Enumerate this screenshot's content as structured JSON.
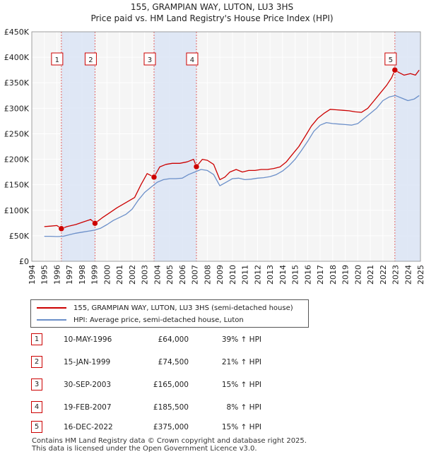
{
  "chart_data": {
    "type": "line",
    "title": "155, GRAMPIAN WAY, LUTON, LU3 3HS",
    "subtitle": "Price paid vs. HM Land Registry's House Price Index (HPI)",
    "xlabel": "",
    "ylabel": "",
    "xlim": [
      1994,
      2025
    ],
    "ylim": [
      0,
      450000
    ],
    "y_ticks": [
      {
        "value": 0,
        "label": "£0"
      },
      {
        "value": 50000,
        "label": "£50K"
      },
      {
        "value": 100000,
        "label": "£100K"
      },
      {
        "value": 150000,
        "label": "£150K"
      },
      {
        "value": 200000,
        "label": "£200K"
      },
      {
        "value": 250000,
        "label": "£250K"
      },
      {
        "value": 300000,
        "label": "£300K"
      },
      {
        "value": 350000,
        "label": "£350K"
      },
      {
        "value": 400000,
        "label": "£400K"
      },
      {
        "value": 450000,
        "label": "£450K"
      }
    ],
    "x_ticks": [
      "1994",
      "1995",
      "1996",
      "1997",
      "1998",
      "1999",
      "2000",
      "2001",
      "2002",
      "2003",
      "2004",
      "2005",
      "2006",
      "2007",
      "2008",
      "2009",
      "2010",
      "2011",
      "2012",
      "2013",
      "2014",
      "2015",
      "2016",
      "2017",
      "2018",
      "2019",
      "2020",
      "2021",
      "2022",
      "2023",
      "2024",
      "2025"
    ],
    "grid": true,
    "series": [
      {
        "name": "155, GRAMPIAN WAY, LUTON, LU3 3HS (semi-detached house)",
        "color": "#cc0000",
        "x": [
          1995.0,
          1995.5,
          1996.0,
          1996.36,
          1996.8,
          1997.5,
          1998.2,
          1998.7,
          1999.04,
          1999.6,
          2000.2,
          2000.8,
          2001.5,
          2002.2,
          2002.7,
          2003.2,
          2003.75,
          2004.2,
          2004.7,
          2005.2,
          2005.8,
          2006.4,
          2006.9,
          2007.13,
          2007.6,
          2008.0,
          2008.5,
          2009.0,
          2009.4,
          2009.8,
          2010.3,
          2010.8,
          2011.3,
          2011.8,
          2012.3,
          2012.8,
          2013.3,
          2013.8,
          2014.3,
          2014.8,
          2015.3,
          2015.8,
          2016.3,
          2016.8,
          2017.3,
          2017.8,
          2018.3,
          2018.8,
          2019.3,
          2019.8,
          2020.3,
          2020.8,
          2021.3,
          2021.8,
          2022.3,
          2022.7,
          2022.96,
          2023.3,
          2023.7,
          2024.2,
          2024.6,
          2024.9
        ],
        "values": [
          68000,
          69000,
          70000,
          64000,
          68000,
          72000,
          78000,
          82000,
          74500,
          85000,
          95000,
          105000,
          115000,
          125000,
          150000,
          172000,
          165000,
          185000,
          190000,
          192000,
          192000,
          195000,
          200000,
          185500,
          200000,
          198000,
          190000,
          160000,
          165000,
          175000,
          180000,
          175000,
          178000,
          178000,
          180000,
          180000,
          182000,
          185000,
          195000,
          210000,
          225000,
          245000,
          265000,
          280000,
          290000,
          298000,
          297000,
          296000,
          295000,
          293000,
          292000,
          300000,
          315000,
          330000,
          345000,
          360000,
          375000,
          370000,
          365000,
          368000,
          365000,
          375000
        ]
      },
      {
        "name": "HPI: Average price, semi-detached house, Luton",
        "color": "#6b8fc9",
        "x": [
          1995.0,
          1995.5,
          1996.0,
          1996.5,
          1997.0,
          1997.5,
          1998.0,
          1998.5,
          1999.0,
          1999.5,
          2000.0,
          2000.5,
          2001.0,
          2001.5,
          2002.0,
          2002.5,
          2003.0,
          2003.5,
          2004.0,
          2004.5,
          2005.0,
          2005.5,
          2006.0,
          2006.5,
          2007.0,
          2007.5,
          2008.0,
          2008.5,
          2009.0,
          2009.5,
          2010.0,
          2010.5,
          2011.0,
          2011.5,
          2012.0,
          2012.5,
          2013.0,
          2013.5,
          2014.0,
          2014.5,
          2015.0,
          2015.5,
          2016.0,
          2016.5,
          2017.0,
          2017.5,
          2018.0,
          2018.5,
          2019.0,
          2019.5,
          2020.0,
          2020.5,
          2021.0,
          2021.5,
          2022.0,
          2022.5,
          2023.0,
          2023.5,
          2024.0,
          2024.5,
          2024.9
        ],
        "values": [
          49000,
          49000,
          48500,
          49000,
          52000,
          55000,
          57000,
          59000,
          61000,
          65000,
          72000,
          80000,
          86000,
          92000,
          102000,
          120000,
          135000,
          145000,
          155000,
          160000,
          162000,
          162000,
          163000,
          170000,
          175000,
          180000,
          178000,
          170000,
          148000,
          155000,
          162000,
          163000,
          160000,
          161000,
          163000,
          164000,
          166000,
          170000,
          177000,
          187000,
          200000,
          217000,
          235000,
          255000,
          267000,
          272000,
          270000,
          269000,
          268000,
          267000,
          270000,
          280000,
          290000,
          300000,
          315000,
          322000,
          325000,
          320000,
          315000,
          318000,
          325000
        ]
      }
    ],
    "shaded_ranges": [
      [
        1996.36,
        1999.04
      ],
      [
        2003.75,
        2007.13
      ],
      [
        2022.96,
        2025.0
      ]
    ],
    "sales_markers": [
      {
        "label": "1",
        "x": 1996.36,
        "value": 64000
      },
      {
        "label": "2",
        "x": 1999.04,
        "value": 74500
      },
      {
        "label": "3",
        "x": 2003.75,
        "value": 165000
      },
      {
        "label": "4",
        "x": 2007.13,
        "value": 185500
      },
      {
        "label": "5",
        "x": 2022.96,
        "value": 375000
      }
    ]
  },
  "legend": {
    "items": [
      {
        "label": "155, GRAMPIAN WAY, LUTON, LU3 3HS (semi-detached house)",
        "color": "#cc0000"
      },
      {
        "label": "HPI: Average price, semi-detached house, Luton",
        "color": "#6b8fc9"
      }
    ]
  },
  "sales": [
    {
      "num": "1",
      "date": "10-MAY-1996",
      "price": "£64,000",
      "hpi": "39% ↑ HPI"
    },
    {
      "num": "2",
      "date": "15-JAN-1999",
      "price": "£74,500",
      "hpi": "21% ↑ HPI"
    },
    {
      "num": "3",
      "date": "30-SEP-2003",
      "price": "£165,000",
      "hpi": "15% ↑ HPI"
    },
    {
      "num": "4",
      "date": "19-FEB-2007",
      "price": "£185,500",
      "hpi": "8% ↑ HPI"
    },
    {
      "num": "5",
      "date": "16-DEC-2022",
      "price": "£375,000",
      "hpi": "15% ↑ HPI"
    }
  ],
  "footer": {
    "line1": "Contains HM Land Registry data © Crown copyright and database right 2025.",
    "line2": "This data is licensed under the Open Government Licence v3.0."
  }
}
